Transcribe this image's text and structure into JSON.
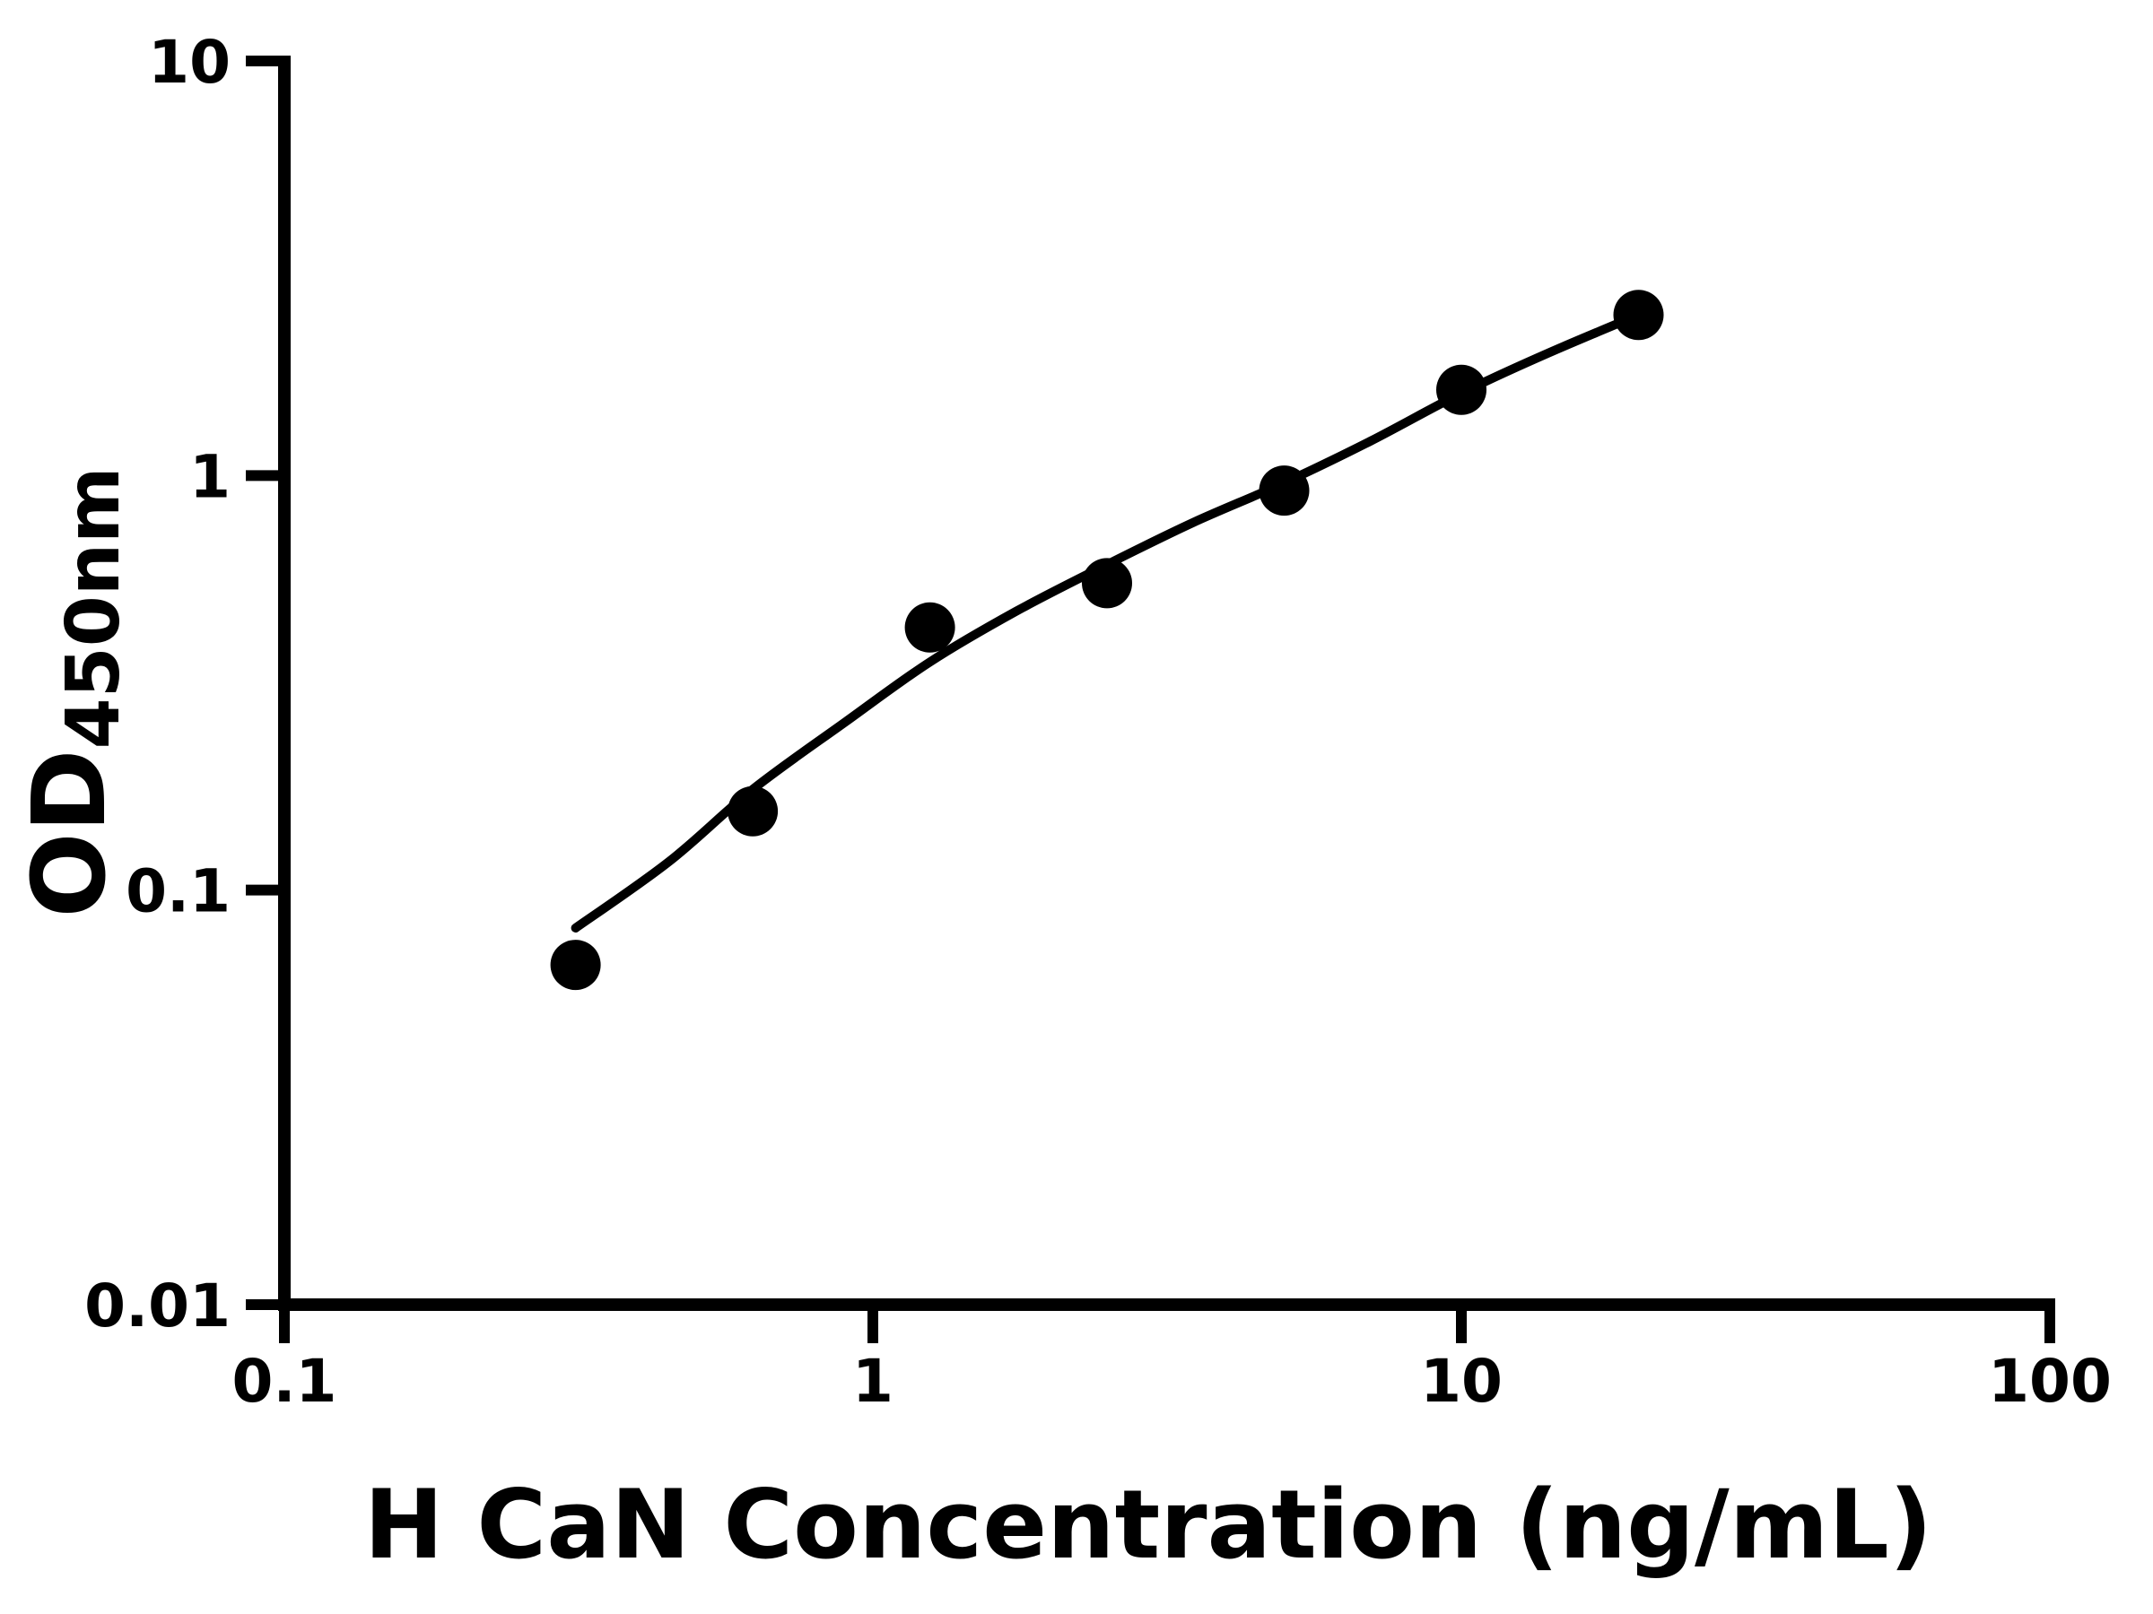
{
  "page": {
    "background_color": "#ffffff",
    "foreground_color": "#000000"
  },
  "chart_data": {
    "type": "scatter",
    "title": "",
    "xlabel": "H CaN Concentration (ng/mL)",
    "ylabel_base": "OD",
    "ylabel_subscript": "450nm",
    "x_scale": "log",
    "y_scale": "log",
    "xlim": [
      0.1,
      100
    ],
    "ylim": [
      0.01,
      10
    ],
    "x_tick_values": [
      0.1,
      1,
      10,
      100
    ],
    "x_tick_labels": [
      "0.1",
      "1",
      "10",
      "100"
    ],
    "y_tick_values": [
      0.01,
      0.1,
      1,
      10
    ],
    "y_tick_labels": [
      "0.01",
      "0.1",
      "1",
      "10"
    ],
    "grid": false,
    "legend": "none",
    "marker_color": "#000000",
    "curve_color": "#000000",
    "axis_color": "#000000",
    "points": [
      {
        "x": 0.3125,
        "y": 0.066
      },
      {
        "x": 0.625,
        "y": 0.155
      },
      {
        "x": 1.25,
        "y": 0.43
      },
      {
        "x": 2.5,
        "y": 0.55
      },
      {
        "x": 5,
        "y": 0.92
      },
      {
        "x": 10,
        "y": 1.61
      },
      {
        "x": 20,
        "y": 2.44
      }
    ],
    "fit_curve_points": [
      {
        "x": 0.3125,
        "y": 0.081
      },
      {
        "x": 0.45,
        "y": 0.117
      },
      {
        "x": 0.625,
        "y": 0.175
      },
      {
        "x": 0.9,
        "y": 0.255
      },
      {
        "x": 1.25,
        "y": 0.355
      },
      {
        "x": 1.75,
        "y": 0.47
      },
      {
        "x": 2.5,
        "y": 0.61
      },
      {
        "x": 3.5,
        "y": 0.77
      },
      {
        "x": 5,
        "y": 0.96
      },
      {
        "x": 7,
        "y": 1.21
      },
      {
        "x": 10,
        "y": 1.58
      },
      {
        "x": 14,
        "y": 1.97
      },
      {
        "x": 20,
        "y": 2.44
      }
    ]
  }
}
